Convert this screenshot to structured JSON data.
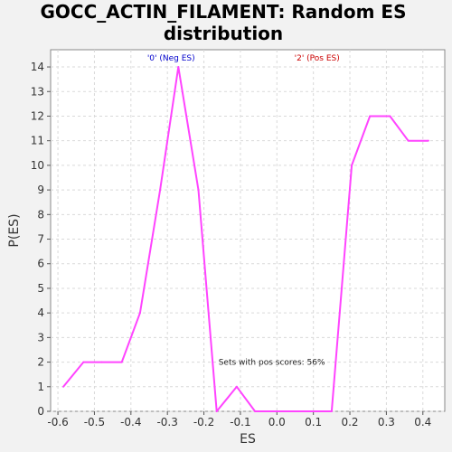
{
  "chart_data": {
    "type": "line",
    "title_lines": [
      "GOCC_ACTIN_FILAMENT: Random ES",
      "distribution"
    ],
    "xlabel": "ES",
    "ylabel": "P(ES)",
    "xlim": [
      -0.62,
      0.46
    ],
    "ylim": [
      0,
      14.7
    ],
    "xticks": [
      -0.6,
      -0.5,
      -0.4,
      -0.3,
      -0.2,
      -0.1,
      0.0,
      0.1,
      0.2,
      0.3,
      0.4
    ],
    "xtick_labels": [
      "-0.6",
      "-0.5",
      "-0.4",
      "-0.3",
      "-0.2",
      "-0.1",
      "0.0",
      "0.1",
      "0.2",
      "0.3",
      "0.4"
    ],
    "yticks": [
      0,
      1,
      2,
      3,
      4,
      5,
      6,
      7,
      8,
      9,
      10,
      11,
      12,
      13,
      14
    ],
    "ytick_labels": [
      "0",
      "1",
      "2",
      "3",
      "4",
      "5",
      "6",
      "7",
      "8",
      "9",
      "10",
      "11",
      "12",
      "13",
      "14"
    ],
    "grid": true,
    "series": [
      {
        "color": "#ff44ff",
        "x": [
          -0.585,
          -0.53,
          -0.48,
          -0.425,
          -0.375,
          -0.32,
          -0.27,
          -0.215,
          -0.165,
          -0.11,
          -0.06,
          0.0,
          0.05,
          0.1,
          0.15,
          0.205,
          0.255,
          0.31,
          0.36,
          0.415
        ],
        "y": [
          1,
          2,
          2,
          2,
          4,
          9,
          14,
          9,
          0,
          1,
          0,
          0,
          0,
          0,
          0,
          10,
          12,
          12,
          11,
          11
        ]
      }
    ],
    "annotations": {
      "neg_label": "'0' (Neg ES)",
      "neg_color": "#0000cc",
      "pos_label": "'2' (Pos ES)",
      "pos_color": "#cc0000",
      "pos_scores_text": "Sets with pos scores: 56%",
      "pos_scores_x": -0.16,
      "pos_scores_y": 1.9
    }
  }
}
